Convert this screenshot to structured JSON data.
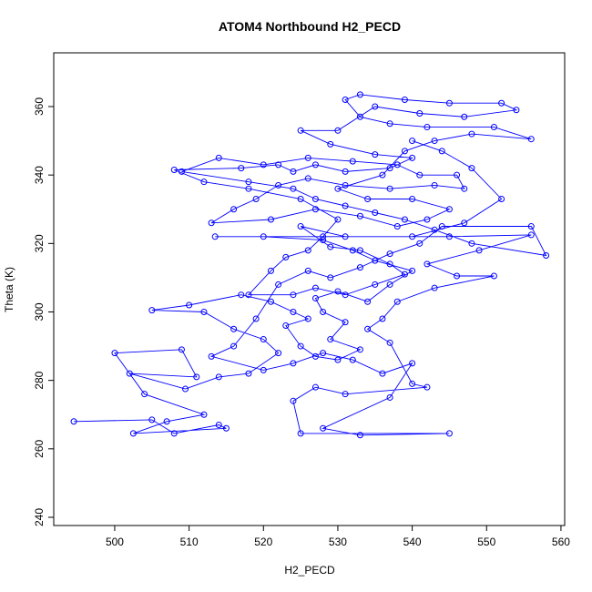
{
  "chart_data": {
    "type": "line",
    "title": "ATOM4 Northbound H2_PECD",
    "x_label": "H2_PECD",
    "y_label": "Theta (K)",
    "xlim": [
      491.8,
      560.5
    ],
    "ylim": [
      237.6,
      375.7
    ],
    "xticks": [
      500,
      510,
      520,
      530,
      540,
      550,
      560
    ],
    "yticks": [
      240,
      260,
      280,
      300,
      320,
      340,
      360
    ],
    "markers": true,
    "grid": false,
    "series": [
      {
        "name": "ATOM4",
        "color": "#0000ff",
        "x": [
          494.5,
          505,
          508,
          514,
          515,
          502.5,
          507,
          512,
          504,
          500,
          509,
          511,
          502,
          509.5,
          514,
          518,
          522,
          520,
          516,
          512,
          505,
          510,
          517,
          521,
          524,
          526,
          523,
          525,
          527,
          530,
          533,
          529,
          531,
          528,
          527,
          530,
          534,
          537,
          540,
          535,
          532,
          528,
          520,
          513.5,
          545,
          556,
          549,
          542,
          546,
          551,
          543,
          538,
          536,
          534,
          537,
          540,
          542,
          531,
          527,
          524,
          525,
          545,
          533,
          528,
          537,
          540,
          536,
          532,
          528,
          524,
          520,
          513,
          516,
          519,
          522,
          526,
          529,
          533,
          537,
          541,
          544,
          556,
          558,
          548,
          543,
          539,
          535,
          531,
          527,
          524,
          518,
          509,
          514,
          520,
          526,
          532,
          538,
          541,
          546,
          547,
          543,
          537,
          531,
          526,
          522,
          519,
          516,
          513,
          521,
          527,
          533,
          538,
          542,
          545,
          540,
          534,
          530,
          536,
          539,
          543,
          548,
          556,
          551,
          542,
          537,
          533,
          531,
          533,
          539,
          545,
          552,
          554,
          547,
          541,
          535,
          530,
          525,
          529,
          535,
          540,
          537,
          531,
          527,
          524,
          522,
          517,
          508,
          512,
          518,
          525,
          530,
          528,
          526,
          523,
          521,
          518,
          524,
          527,
          531,
          535,
          539,
          537,
          533,
          529,
          525,
          531,
          540,
          547,
          552,
          548,
          544,
          540
        ],
        "values": [
          268,
          268.5,
          264.5,
          267,
          266,
          264.5,
          268,
          270,
          276,
          288,
          289,
          281,
          282,
          277.5,
          281,
          282,
          288,
          292,
          295,
          300,
          300.5,
          302,
          305,
          303,
          300,
          298,
          296,
          290,
          287,
          286,
          289,
          292,
          297,
          300,
          304,
          306,
          303,
          308,
          312,
          315,
          318,
          321,
          322,
          322,
          322,
          322.5,
          318,
          314,
          310.5,
          310.5,
          307,
          303,
          298,
          295,
          291,
          279,
          278,
          276,
          278,
          274,
          264.5,
          264.5,
          264,
          266,
          275,
          285,
          282,
          286,
          288,
          285,
          283,
          287,
          290,
          298,
          308,
          312,
          310,
          313,
          317,
          320,
          325,
          325,
          316.5,
          320,
          324,
          327,
          329,
          331,
          333,
          336,
          338,
          341,
          345,
          343,
          345,
          344,
          343,
          340,
          340,
          336,
          337,
          336,
          337,
          339,
          337,
          333,
          330,
          326,
          327,
          330,
          328,
          325,
          327,
          330,
          333,
          333,
          336,
          340,
          347,
          350,
          352,
          350.5,
          354,
          354,
          355,
          357,
          362,
          363.5,
          362,
          361,
          361,
          359,
          357,
          358,
          360,
          353,
          353,
          349,
          346,
          345,
          342,
          341,
          343,
          341,
          343,
          342,
          341.5,
          338,
          336,
          333,
          327,
          322,
          318,
          316,
          312,
          305,
          305,
          307,
          305,
          308,
          311,
          314,
          318,
          319,
          325,
          322,
          322,
          326,
          333,
          342,
          347,
          350
        ]
      }
    ]
  }
}
